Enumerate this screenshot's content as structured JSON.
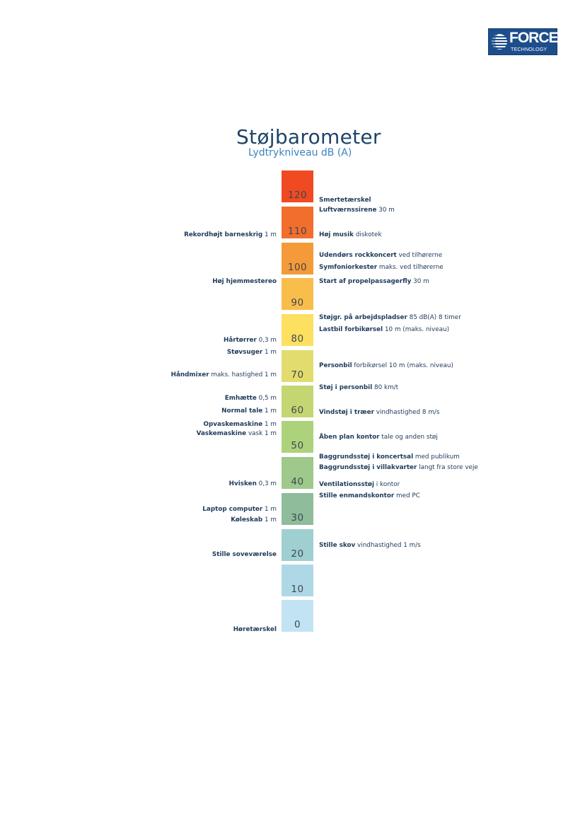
{
  "logo": {
    "line1": "FORCE",
    "line2": "TECHNOLOGY"
  },
  "title": "Støjbarometer",
  "subtitle": "Lydtrykniveau dB (A)",
  "scale": [
    {
      "value": "120",
      "color": "#f04a22"
    },
    {
      "value": "110",
      "color": "#f26e2c"
    },
    {
      "value": "100",
      "color": "#f59a38"
    },
    {
      "value": "90",
      "color": "#f9bd4c"
    },
    {
      "value": "80",
      "color": "#fde060"
    },
    {
      "value": "70",
      "color": "#e2dc6e"
    },
    {
      "value": "60",
      "color": "#c4d672"
    },
    {
      "value": "50",
      "color": "#add27c"
    },
    {
      "value": "40",
      "color": "#9ec98b"
    },
    {
      "value": "30",
      "color": "#8fbc9a"
    },
    {
      "value": "20",
      "color": "#9fcfd0"
    },
    {
      "value": "10",
      "color": "#afd8e6"
    },
    {
      "value": "0",
      "color": "#c2e3f3"
    }
  ],
  "right_labels": [
    {
      "bold": "Smertetærskel",
      "rest": ""
    },
    {
      "bold": "Luftværnssirene",
      "rest": " 30 m"
    },
    {
      "bold": "Høj musik",
      "rest": " diskotek"
    },
    {
      "bold": "Udendørs rockkoncert",
      "rest": " ved tilhørerne"
    },
    {
      "bold": "Symfoniorkester",
      "rest": " maks. ved tilhørerne"
    },
    {
      "bold": "Start af propelpassagerfly",
      "rest": " 30 m"
    },
    {
      "bold": "Støjgr. på arbejdspladser",
      "rest": " 85 dB(A) 8 timer"
    },
    {
      "bold": "Lastbil forbikørsel",
      "rest": " 10 m (maks. niveau)"
    },
    {
      "bold": "Personbil",
      "rest": " forbikørsel 10 m (maks. niveau)"
    },
    {
      "bold": "Støj i personbil",
      "rest": " 80 km/t"
    },
    {
      "bold": "Vindstøj i træer",
      "rest": " vindhastighed 8 m/s"
    },
    {
      "bold": "Åben plan kontor",
      "rest": " tale og anden støj"
    },
    {
      "bold": "Baggrundsstøj i koncertsal",
      "rest": " med publikum"
    },
    {
      "bold": "Baggrundsstøj i villakvarter",
      "rest": " langt fra store veje"
    },
    {
      "bold": "Ventilationsstøj",
      "rest": " i kontor"
    },
    {
      "bold": "Stille enmandskontor",
      "rest": " med PC"
    },
    {
      "bold": "Stille skov",
      "rest": " vindhastighed 1 m/s"
    }
  ],
  "left_labels": [
    {
      "bold": "Rekordhøjt barneskrig",
      "rest": " 1 m"
    },
    {
      "bold": "Høj hjemmestereo",
      "rest": ""
    },
    {
      "bold": "Hårtørrer",
      "rest": " 0,3 m"
    },
    {
      "bold": "Støvsuger",
      "rest": " 1 m"
    },
    {
      "bold": "Håndmixer",
      "rest": " maks. hastighed 1 m"
    },
    {
      "bold": "Emhætte",
      "rest": " 0,5 m"
    },
    {
      "bold": "Normal tale",
      "rest": " 1 m"
    },
    {
      "bold": "Opvaskemaskine",
      "rest": " 1 m"
    },
    {
      "bold": "Vaskemaskine",
      "rest": " vask 1 m"
    },
    {
      "bold": "Hvisken",
      "rest": " 0,3 m"
    },
    {
      "bold": "Laptop computer",
      "rest": " 1 m"
    },
    {
      "bold": "Køleskab",
      "rest": " 1 m"
    },
    {
      "bold": "Stille soveværelse",
      "rest": ""
    },
    {
      "bold": "Høretærskel",
      "rest": ""
    }
  ]
}
